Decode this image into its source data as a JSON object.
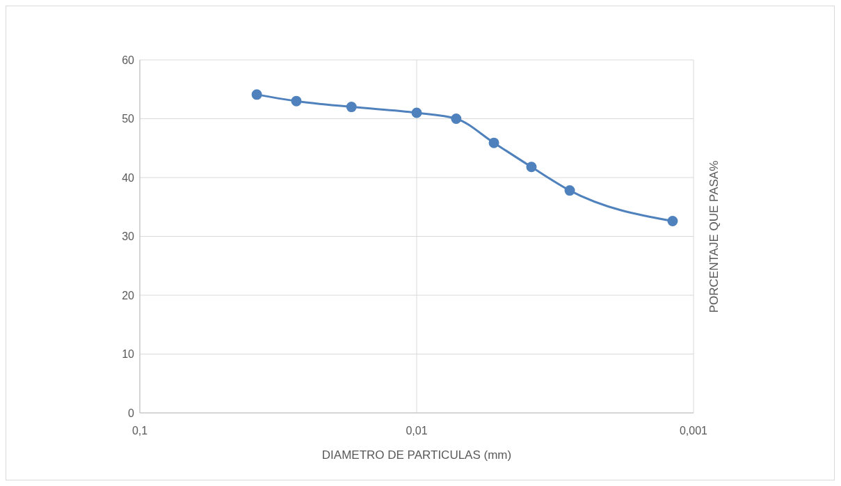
{
  "chart_data": {
    "type": "line",
    "xlabel": "DIAMETRO DE PARTICULAS (mm)",
    "ylabel": "PORCENTAJE QUE PASA%",
    "x": [
      0.0378,
      0.0272,
      0.0172,
      0.01,
      0.0072,
      0.00526,
      0.00385,
      0.0028,
      0.00119
    ],
    "series": [
      {
        "color": "#4f81bd",
        "values": [
          54.1,
          53.0,
          52.0,
          51.0,
          50.0,
          45.9,
          41.8,
          37.8,
          32.6
        ]
      }
    ],
    "log": "x",
    "xlim": [
      0.1,
      0.001
    ],
    "xticks": [
      {
        "value": 0.1,
        "label": "0,1"
      },
      {
        "value": 0.01,
        "label": "0,01"
      },
      {
        "value": 0.001,
        "label": "0,001"
      }
    ],
    "ylim": [
      0,
      60
    ],
    "yticks": [
      0,
      10,
      20,
      30,
      40,
      50,
      60
    ],
    "grid": true,
    "marker": "circle",
    "line_style": "solid"
  }
}
